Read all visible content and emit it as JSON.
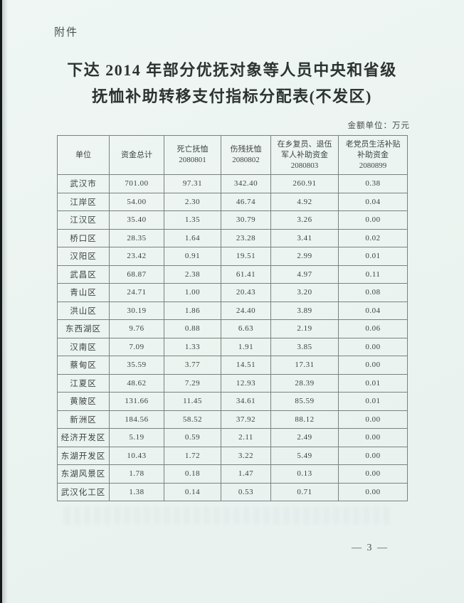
{
  "page": {
    "attachment_label": "附件",
    "title_line1": "下达 2014 年部分优抚对象等人员中央和省级",
    "title_line2": "抚恤补助转移支付指标分配表(不发区)",
    "unit_note": "金额单位：万元",
    "page_number": "— 3 —"
  },
  "table": {
    "columns": [
      {
        "lines": [
          "单位"
        ]
      },
      {
        "lines": [
          "资金总计"
        ]
      },
      {
        "lines": [
          "死亡抚恤",
          "2080801"
        ]
      },
      {
        "lines": [
          "伤残抚恤",
          "2080802"
        ]
      },
      {
        "lines": [
          "在乡复员、退伍",
          "军人补助资金",
          "2080803"
        ]
      },
      {
        "lines": [
          "老党员生活补贴",
          "补助资金",
          "2080899"
        ]
      }
    ],
    "rows": [
      {
        "unit": "武汉市",
        "values": [
          "701.00",
          "97.31",
          "342.40",
          "260.91",
          "0.38"
        ]
      },
      {
        "unit": "江岸区",
        "values": [
          "54.00",
          "2.30",
          "46.74",
          "4.92",
          "0.04"
        ]
      },
      {
        "unit": "江汉区",
        "values": [
          "35.40",
          "1.35",
          "30.79",
          "3.26",
          "0.00"
        ]
      },
      {
        "unit": "桥口区",
        "values": [
          "28.35",
          "1.64",
          "23.28",
          "3.41",
          "0.02"
        ]
      },
      {
        "unit": "汉阳区",
        "values": [
          "23.42",
          "0.91",
          "19.51",
          "2.99",
          "0.01"
        ]
      },
      {
        "unit": "武昌区",
        "values": [
          "68.87",
          "2.38",
          "61.41",
          "4.97",
          "0.11"
        ]
      },
      {
        "unit": "青山区",
        "values": [
          "24.71",
          "1.00",
          "20.43",
          "3.20",
          "0.08"
        ]
      },
      {
        "unit": "洪山区",
        "values": [
          "30.19",
          "1.86",
          "24.40",
          "3.89",
          "0.04"
        ]
      },
      {
        "unit": "东西湖区",
        "values": [
          "9.76",
          "0.88",
          "6.63",
          "2.19",
          "0.06"
        ]
      },
      {
        "unit": "汉南区",
        "values": [
          "7.09",
          "1.33",
          "1.91",
          "3.85",
          "0.00"
        ]
      },
      {
        "unit": "蔡甸区",
        "values": [
          "35.59",
          "3.77",
          "14.51",
          "17.31",
          "0.00"
        ]
      },
      {
        "unit": "江夏区",
        "values": [
          "48.62",
          "7.29",
          "12.93",
          "28.39",
          "0.01"
        ]
      },
      {
        "unit": "黄陂区",
        "values": [
          "131.66",
          "11.45",
          "34.61",
          "85.59",
          "0.01"
        ]
      },
      {
        "unit": "新洲区",
        "values": [
          "184.56",
          "58.52",
          "37.92",
          "88.12",
          "0.00"
        ]
      },
      {
        "unit": "经济开发区",
        "values": [
          "5.19",
          "0.59",
          "2.11",
          "2.49",
          "0.00"
        ]
      },
      {
        "unit": "东湖开发区",
        "values": [
          "10.43",
          "1.72",
          "3.22",
          "5.49",
          "0.00"
        ]
      },
      {
        "unit": "东湖风景区",
        "values": [
          "1.78",
          "0.18",
          "1.47",
          "0.13",
          "0.00"
        ]
      },
      {
        "unit": "武汉化工区",
        "values": [
          "1.38",
          "0.14",
          "0.53",
          "0.71",
          "0.00"
        ]
      }
    ]
  },
  "colors": {
    "paper": "#ecf4f1",
    "text": "#3b413f",
    "border": "#798280",
    "scan_edge": "#15181a"
  }
}
